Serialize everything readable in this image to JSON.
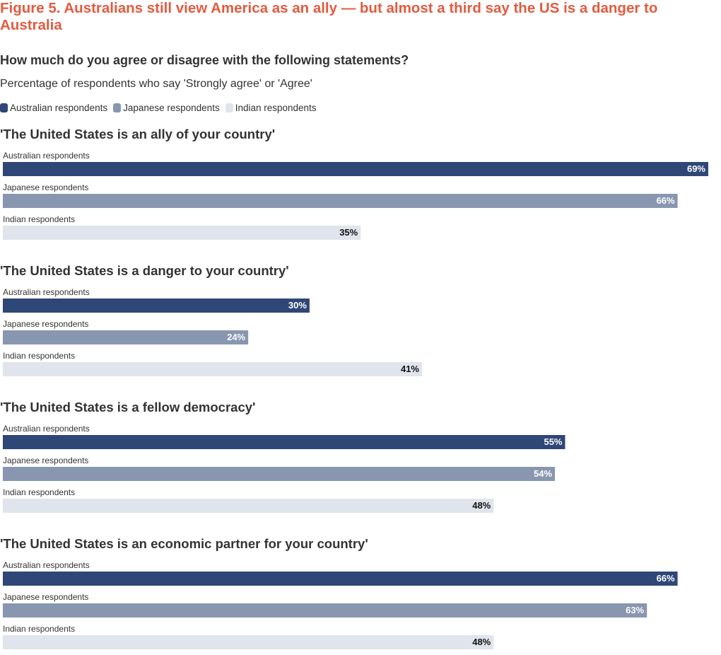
{
  "title": "Figure 5. Australians still view America as an ally — but almost a third say the US is a danger to Australia",
  "question": "How much do you agree or disagree with the following statements?",
  "subtitle": "Percentage of respondents who say 'Strongly agree' or 'Agree'",
  "colors": {
    "title": "#e35b3f",
    "australian": "#2f4777",
    "japanese": "#8896b0",
    "indian": "#e0e4ec"
  },
  "legend": [
    "Australian respondents",
    "Japanese respondents",
    "Indian respondents"
  ],
  "chart_data": {
    "type": "bar",
    "orientation": "horizontal",
    "value_format": "{v}%",
    "xlim": [
      0,
      69
    ],
    "series_names": [
      "Australian respondents",
      "Japanese respondents",
      "Indian respondents"
    ],
    "groups": [
      {
        "title": "'The United States is an ally of your country'",
        "values": [
          69,
          66,
          35
        ]
      },
      {
        "title": "'The United States is a danger to your country'",
        "values": [
          30,
          24,
          41
        ]
      },
      {
        "title": "'The United States is a fellow democracy'",
        "values": [
          55,
          54,
          48
        ]
      },
      {
        "title": "'The United States is an economic partner for your country'",
        "values": [
          66,
          63,
          48
        ]
      }
    ]
  }
}
